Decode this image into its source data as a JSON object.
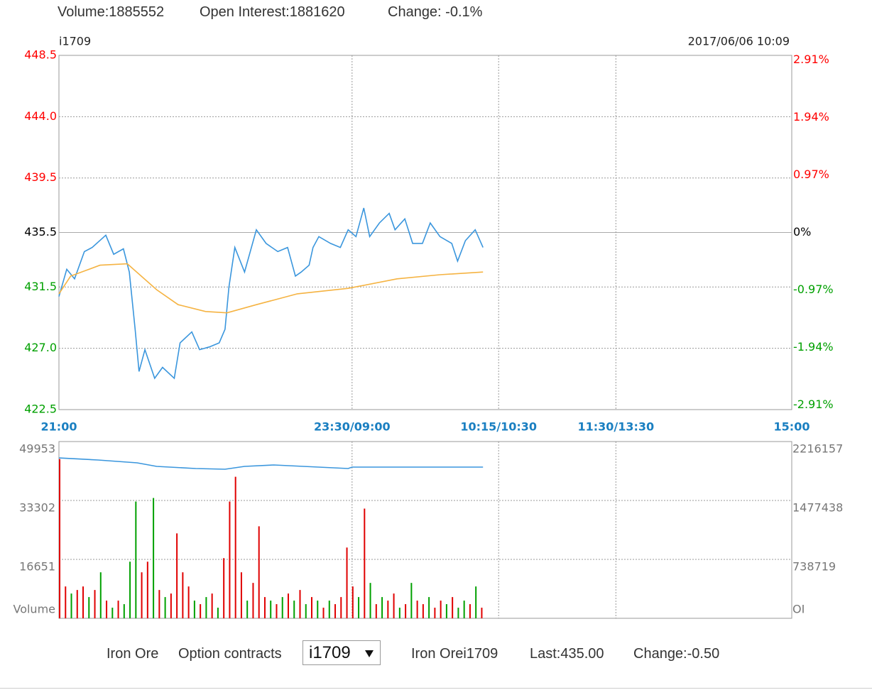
{
  "header": {
    "volume": "Volume:1885552",
    "open_interest": "Open Interest:1881620",
    "change": "Change: -0.1%"
  },
  "chart_data": [
    {
      "type": "line",
      "symbol": "i1709",
      "timestamp": "2017/06/06 10:09",
      "ylim": [
        422.5,
        448.5
      ],
      "yticks": [
        448.5,
        {
          "value": 444,
          "label": "444.0"
        },
        439.5,
        435.5,
        431.5,
        {
          "value": 427,
          "label": "427.0"
        },
        422.5
      ],
      "y2lim": [
        -2.985,
        2.985
      ],
      "y2ticks": [
        {
          "value": 2.91,
          "label": "2.91%"
        },
        {
          "value": 1.94,
          "label": "1.94%"
        },
        {
          "value": 0.97,
          "label": "0.97%"
        },
        {
          "value": 0,
          "label": "0%"
        },
        {
          "value": -0.97,
          "label": "-0.97%"
        },
        {
          "value": -1.94,
          "label": "-1.94%"
        },
        {
          "value": -2.91,
          "label": "-2.91%"
        }
      ],
      "up_color": "#ff0000",
      "down_color": "#00a000",
      "xlim": [
        0,
        375
      ],
      "xticks": [
        {
          "value": 0,
          "label": "21:00"
        },
        {
          "value": 150,
          "label": "23:30/09:00"
        },
        {
          "value": 225,
          "label": "10:15/10:30"
        },
        {
          "value": 285,
          "label": "11:30/13:30"
        },
        {
          "value": 375,
          "label": "15:00"
        }
      ],
      "grid": true,
      "series": [
        {
          "color": "#3a96dd",
          "x": [
            0,
            4,
            8,
            13,
            17,
            24,
            28,
            33,
            36,
            39,
            41,
            44,
            49,
            53,
            59,
            62,
            68,
            72,
            77,
            82,
            85,
            87,
            90,
            95,
            101,
            106,
            112,
            117,
            121,
            124,
            128,
            130,
            133,
            139,
            144,
            148,
            152,
            156,
            159,
            164,
            169,
            172,
            177,
            181,
            186,
            190,
            195,
            201,
            204,
            208,
            213,
            217
          ],
          "values": [
            430.8,
            432.8,
            432.1,
            434.1,
            434.4,
            435.3,
            433.9,
            434.3,
            432.6,
            428.4,
            425.3,
            426.9,
            424.8,
            425.6,
            424.8,
            427.4,
            428.2,
            426.9,
            427.1,
            427.4,
            428.4,
            431.5,
            434.4,
            432.6,
            435.7,
            434.7,
            434.1,
            434.4,
            432.3,
            432.6,
            433.1,
            434.4,
            435.2,
            434.7,
            434.4,
            435.7,
            435.2,
            437.3,
            435.2,
            436.2,
            436.9,
            435.7,
            436.5,
            434.7,
            434.7,
            436.2,
            435.2,
            434.7,
            433.4,
            434.9,
            435.7,
            434.4
          ]
        },
        {
          "color": "#f5b342",
          "x": [
            0,
            6,
            21,
            35,
            50,
            61,
            75,
            86,
            101,
            122,
            148,
            173,
            195,
            217
          ],
          "values": [
            431.0,
            432.3,
            433.1,
            433.2,
            431.3,
            430.2,
            429.7,
            429.6,
            430.2,
            431.0,
            431.4,
            432.1,
            432.4,
            432.6
          ]
        }
      ]
    },
    {
      "type": "bar",
      "ylim": [
        0,
        49953
      ],
      "yticks": [
        49953,
        33302,
        16651
      ],
      "ylabel": "Volume",
      "y2lim": [
        0,
        2216157
      ],
      "y2ticks": [
        2216157,
        1477438,
        738719
      ],
      "y2label": "OI",
      "x": [
        0,
        3,
        6,
        9,
        12,
        15,
        18,
        21,
        24,
        27,
        30,
        33,
        36,
        39,
        42,
        45,
        48,
        51,
        54,
        57,
        60,
        63,
        66,
        69,
        72,
        75,
        78,
        81,
        84,
        87,
        90,
        93,
        96,
        99,
        102,
        105,
        108,
        111,
        114,
        117,
        120,
        123,
        126,
        129,
        132,
        135,
        138,
        141,
        144,
        147,
        150,
        153,
        156,
        159,
        162,
        165,
        168,
        171,
        174,
        177,
        180,
        183,
        186,
        189,
        192,
        195,
        198,
        201,
        204,
        207,
        210,
        213,
        216
      ],
      "values": [
        45000,
        9000,
        7000,
        8000,
        9000,
        6000,
        8000,
        13000,
        5000,
        3000,
        5000,
        4000,
        16000,
        33000,
        13000,
        16000,
        34000,
        8000,
        6000,
        7000,
        24000,
        13000,
        9000,
        5000,
        4000,
        6000,
        7000,
        3000,
        17000,
        33000,
        40000,
        13000,
        5000,
        10000,
        26000,
        6000,
        5000,
        4000,
        6000,
        7000,
        5000,
        8000,
        4000,
        6000,
        5000,
        3000,
        5000,
        4000,
        6000,
        20000,
        9000,
        6000,
        31000,
        10000,
        4000,
        6000,
        5000,
        7000,
        3000,
        4000,
        10000,
        5000,
        4000,
        6000,
        3000,
        5000,
        4000,
        6000,
        3000,
        5000,
        4000,
        9000,
        3000
      ],
      "bar_colors": [
        "#e00000",
        "#e00000",
        "#00a000",
        "#e00000",
        "#e00000",
        "#00a000",
        "#e00000",
        "#00a000",
        "#e00000",
        "#00a000",
        "#e00000",
        "#00a000",
        "#00a000",
        "#00a000",
        "#e00000",
        "#e00000",
        "#00a000",
        "#e00000",
        "#00a000",
        "#e00000",
        "#e00000",
        "#e00000",
        "#e00000",
        "#00a000",
        "#e00000",
        "#00a000",
        "#e00000",
        "#00a000",
        "#e00000",
        "#e00000",
        "#e00000",
        "#e00000",
        "#00a000",
        "#e00000",
        "#e00000",
        "#e00000",
        "#00a000",
        "#e00000",
        "#00a000",
        "#e00000",
        "#00a000",
        "#e00000",
        "#00a000",
        "#e00000",
        "#00a000",
        "#e00000",
        "#00a000",
        "#e00000",
        "#e00000",
        "#e00000",
        "#e00000",
        "#00a000",
        "#e00000",
        "#00a000",
        "#e00000",
        "#00a000",
        "#e00000",
        "#e00000",
        "#00a000",
        "#e00000",
        "#00a000",
        "#e00000",
        "#e00000",
        "#00a000",
        "#e00000",
        "#e00000",
        "#00a000",
        "#e00000",
        "#00a000",
        "#00a000",
        "#e00000",
        "#00a000",
        "#e00000"
      ],
      "oi_series": {
        "color": "#3a96dd",
        "x": [
          0,
          20,
          40,
          50,
          70,
          85,
          95,
          110,
          148,
          150,
          217
        ],
        "values": [
          2011000,
          1984700,
          1949100,
          1904600,
          1877900,
          1869000,
          1904600,
          1922400,
          1877900,
          1895700,
          1895700
        ]
      }
    }
  ],
  "footer": {
    "product": "Iron Ore",
    "option_label": "Option contracts",
    "selected": "i1709",
    "quote_name": "Iron Orei1709",
    "last": "Last:435.00",
    "change": "Change:-0.50"
  }
}
